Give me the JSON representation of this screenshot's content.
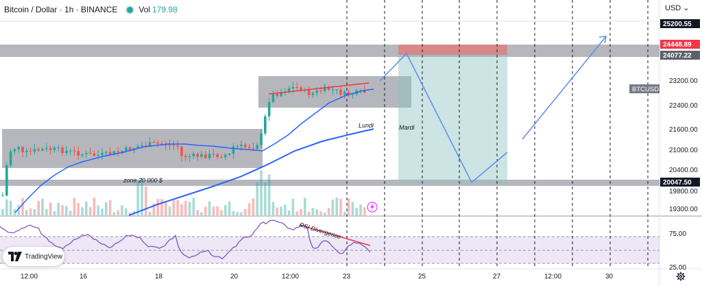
{
  "header": {
    "title": "Bitcoin / Dollar · 1h · BINANCE",
    "vol_label": "Vol",
    "vol_value": "179.98"
  },
  "price_axis": {
    "currency_label": "USD",
    "ticks": [
      "23200.00",
      "22400.00",
      "21600.00",
      "21000.00",
      "20400.00",
      "19800.00",
      "19300.00"
    ],
    "rsi_ticks": [
      "75.00",
      "25.00"
    ],
    "badges": [
      {
        "text": "25200.55",
        "value": 25200.55,
        "bg": "#131722",
        "fg": "#ffffff"
      },
      {
        "text": "24448.89",
        "value": 24448.89,
        "bg": "#f23645",
        "fg": "#ffffff"
      },
      {
        "text": "24077.22",
        "value": 24077.22,
        "bg": "#5d606b",
        "fg": "#ffffff"
      },
      {
        "text": "20047.50",
        "value": 20047.5,
        "bg": "#131722",
        "fg": "#ffffff"
      }
    ],
    "symbol_badge": "BTCUSD"
  },
  "time_axis": {
    "labels": [
      "12:00",
      "16",
      "18",
      "20",
      "12:00",
      "23",
      "25",
      "27",
      "12:00",
      "30"
    ]
  },
  "annotations": {
    "lundi": "Lundi",
    "mardi": "Mardi",
    "zone": "zone 20 000 $",
    "rsi_div": "RSI Divergence"
  },
  "branding": {
    "logo_text": "TradingView",
    "logo_icon": "tradingview-icon",
    "settings_icon": "gear-icon",
    "lightning_icon": "lightning-icon"
  },
  "colors": {
    "up": "#26a69a",
    "down": "#ef5350",
    "ma_fast": "#2962ff",
    "ma_slow": "#2962ff",
    "rsi": "#7e57c2",
    "drawing": "#5b8def",
    "zone_gray": "#787b86",
    "target_green": "#8fc4c0",
    "stop_red": "#e57373"
  },
  "chart_data": {
    "type": "candlestick",
    "symbol": "BTCUSD",
    "interval": "1h",
    "exchange": "BINANCE",
    "x_labels": [
      "12:00",
      "16",
      "18",
      "20",
      "12:00",
      "23",
      "25",
      "27",
      "12:00",
      "30"
    ],
    "y_ticks": [
      23200,
      22400,
      21600,
      21000,
      20400,
      19800,
      19300
    ],
    "price_markers": [
      25200.55,
      24448.89,
      24077.22,
      20047.5
    ],
    "key_levels": {
      "resistance_zone": [
        24077.22,
        24448.89
      ],
      "support_line": 20047.5,
      "consolidation_1": [
        20700,
        21650
      ],
      "consolidation_2": [
        22550,
        23300
      ]
    },
    "rsi_levels": [
      75,
      25
    ],
    "annotations": [
      "Lundi",
      "Mardi",
      "zone 20 000 $",
      "RSI Divergence"
    ]
  }
}
